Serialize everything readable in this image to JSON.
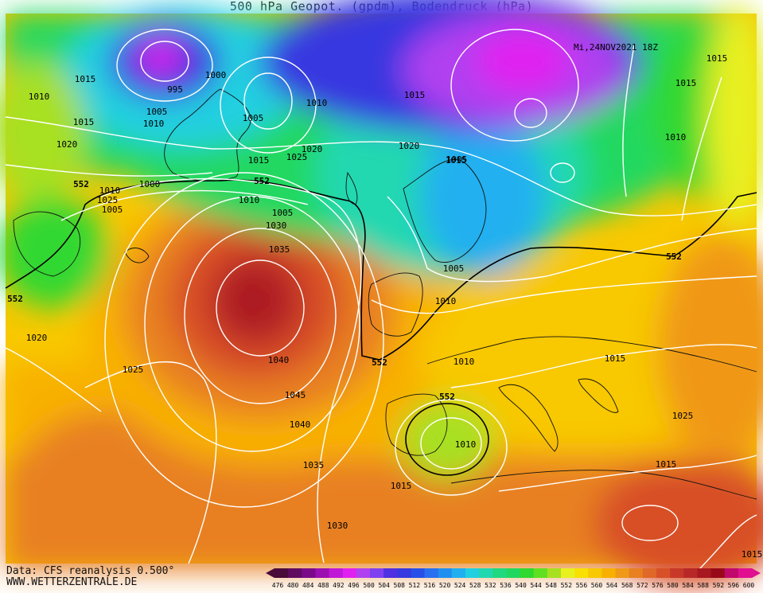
{
  "header": {
    "title": "500 hPa Geopot. (gpdm), Bodendruck (hPa)"
  },
  "map": {
    "valid_time": "Mi,24NOV2021 18Z",
    "contour_552_label": "552",
    "pressure_labels": [
      "1015",
      "1010",
      "1015",
      "1020",
      "995",
      "1000",
      "1005",
      "1010",
      "1005",
      "1010",
      "1020",
      "1015",
      "1025",
      "1015",
      "1020",
      "1005",
      "1010",
      "1025",
      "1000",
      "1005",
      "1015",
      "1010",
      "1005",
      "1030",
      "1035",
      "1040",
      "1045",
      "1040",
      "1035",
      "1030",
      "1025",
      "1020",
      "1010",
      "1005",
      "1015",
      "1010",
      "1025",
      "1015",
      "1015",
      "1010",
      "1015",
      "1015",
      "1015",
      "1010"
    ],
    "palette": [
      "#4a0a3a",
      "#600a60",
      "#7a0a8a",
      "#9a10b0",
      "#c018d8",
      "#e020f0",
      "#b040f0",
      "#8040f0",
      "#5030e0",
      "#3838e0",
      "#2850e8",
      "#2870f0",
      "#2090f0",
      "#20b0f0",
      "#20d0e0",
      "#20d8b0",
      "#20d880",
      "#20d860",
      "#30d830",
      "#60e020",
      "#a8e020",
      "#e8f020",
      "#f8e000",
      "#f8c800",
      "#f8b000",
      "#f09818",
      "#e88020",
      "#e06828",
      "#d85028",
      "#c83828",
      "#b82828",
      "#a81820",
      "#980818",
      "#c0086a",
      "#e01090"
    ]
  },
  "footer": {
    "source": "Data: CFS reanalysis 0.500°",
    "website": "WWW.WETTERZENTRALE.DE"
  },
  "legend": {
    "ticks": [
      "476",
      "480",
      "484",
      "488",
      "492",
      "496",
      "500",
      "504",
      "508",
      "512",
      "516",
      "520",
      "524",
      "528",
      "532",
      "536",
      "540",
      "544",
      "548",
      "552",
      "556",
      "560",
      "564",
      "568",
      "572",
      "576",
      "580",
      "584",
      "588",
      "592",
      "596",
      "600"
    ]
  }
}
